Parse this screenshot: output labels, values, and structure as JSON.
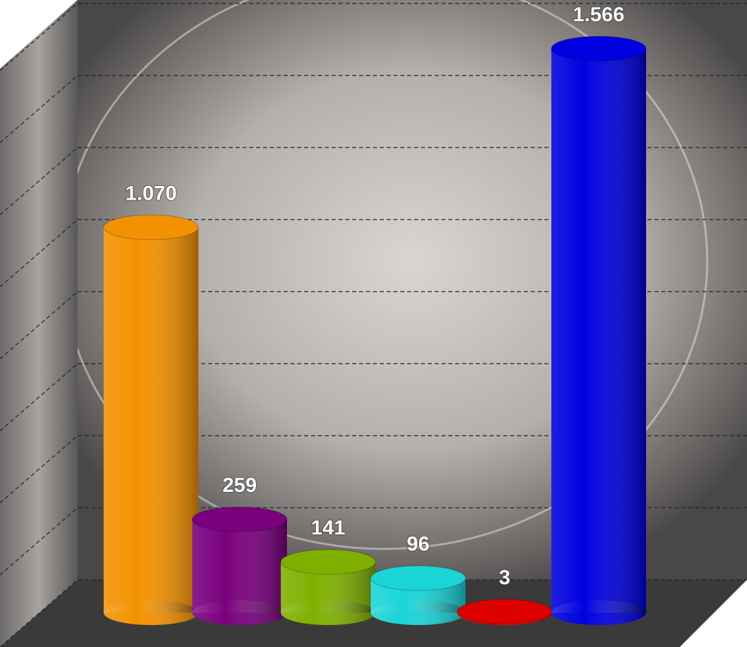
{
  "chart_data": {
    "type": "cylinder",
    "values": [
      1070,
      259,
      141,
      96,
      3,
      1566
    ],
    "value_labels": [
      "1.070",
      "259",
      "141",
      "96",
      "3",
      "1.566"
    ],
    "colors": [
      "#f39200",
      "#7a007e",
      "#7fb000",
      "#1ad4d6",
      "#dd0000",
      "#0000e0"
    ],
    "ylim": [
      0,
      1600
    ],
    "yticks": [
      0,
      200,
      400,
      600,
      800,
      1000,
      1200,
      1400,
      1600
    ],
    "show_tick_labels": false,
    "grid": true
  }
}
